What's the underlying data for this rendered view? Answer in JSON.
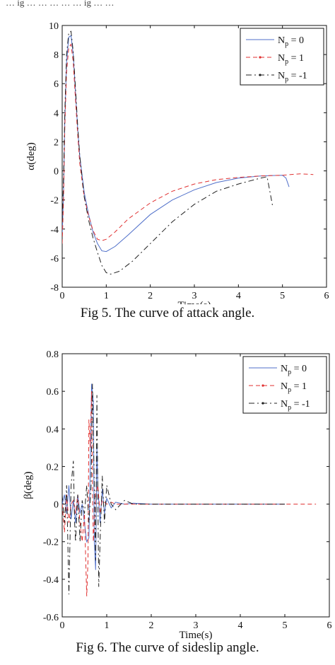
{
  "top_text": "… ig … … … … … ig … …",
  "captions": [
    "Fig 5. The curve of attack angle.",
    "Fig 6. The curve of sideslip angle."
  ],
  "colors": {
    "np0": "#4f6fc9",
    "np1": "#e03030",
    "npm1": "#222222"
  },
  "chart_data": [
    {
      "type": "line",
      "xlabel": "Time(s)",
      "ylabel": "α(deg)",
      "xlim": [
        0,
        6
      ],
      "ylim": [
        -8,
        10
      ],
      "xticks": [
        0,
        1,
        2,
        3,
        4,
        5,
        6
      ],
      "yticks": [
        -8,
        -6,
        -4,
        -2,
        0,
        2,
        4,
        6,
        8,
        10
      ],
      "legend_position": "top-right",
      "legend": [
        {
          "label": "N",
          "sub": "p",
          "eq": " = 0"
        },
        {
          "label": "N",
          "sub": "p",
          "eq": " = 1"
        },
        {
          "label": "N",
          "sub": "p",
          "eq": " = -1"
        }
      ],
      "series": [
        {
          "key": "np0",
          "style": "solid",
          "x": [
            0,
            0.03,
            0.06,
            0.1,
            0.15,
            0.2,
            0.25,
            0.3,
            0.35,
            0.4,
            0.5,
            0.6,
            0.7,
            0.8,
            0.9,
            1.0,
            1.2,
            1.5,
            2.0,
            2.5,
            3.0,
            3.5,
            4.0,
            4.5,
            5.0,
            5.08,
            5.15
          ],
          "y": [
            -4.5,
            -1.5,
            3.5,
            7.5,
            9.2,
            9.3,
            8.0,
            5.5,
            3.0,
            1.0,
            -1.5,
            -3.0,
            -4.2,
            -5.0,
            -5.5,
            -5.55,
            -5.2,
            -4.4,
            -3.0,
            -2.0,
            -1.3,
            -0.8,
            -0.5,
            -0.35,
            -0.3,
            -0.5,
            -1.1
          ]
        },
        {
          "key": "np1",
          "style": "dashed",
          "x": [
            0,
            0.03,
            0.06,
            0.1,
            0.15,
            0.2,
            0.25,
            0.3,
            0.35,
            0.4,
            0.5,
            0.6,
            0.7,
            0.8,
            0.9,
            1.0,
            1.2,
            1.5,
            2.0,
            2.5,
            3.0,
            3.5,
            4.0,
            4.5,
            5.0,
            5.4,
            5.7
          ],
          "y": [
            -5.0,
            -2.0,
            3.0,
            6.8,
            8.5,
            8.7,
            7.5,
            5.0,
            2.6,
            0.5,
            -1.8,
            -3.1,
            -4.1,
            -4.7,
            -4.8,
            -4.7,
            -4.2,
            -3.3,
            -2.2,
            -1.4,
            -0.9,
            -0.6,
            -0.45,
            -0.35,
            -0.3,
            -0.2,
            -0.25
          ]
        },
        {
          "key": "npm1",
          "style": "dashdot",
          "x": [
            0,
            0.03,
            0.06,
            0.1,
            0.15,
            0.2,
            0.25,
            0.3,
            0.35,
            0.4,
            0.5,
            0.6,
            0.7,
            0.8,
            0.9,
            1.0,
            1.1,
            1.3,
            1.6,
            2.0,
            2.5,
            3.0,
            3.5,
            4.0,
            4.5,
            4.65,
            4.72,
            4.78
          ],
          "y": [
            -3.5,
            -0.5,
            4.0,
            8.0,
            9.5,
            9.6,
            8.2,
            5.8,
            3.2,
            1.0,
            -1.8,
            -3.4,
            -4.6,
            -5.6,
            -6.5,
            -7.0,
            -7.1,
            -6.9,
            -6.2,
            -5.0,
            -3.5,
            -2.3,
            -1.4,
            -0.9,
            -0.5,
            -0.4,
            -1.5,
            -2.5
          ]
        }
      ]
    },
    {
      "type": "line",
      "xlabel": "Time(s)",
      "ylabel": "β(deg)",
      "xlim": [
        0,
        6
      ],
      "ylim": [
        -0.6,
        0.8
      ],
      "xticks": [
        0,
        1,
        2,
        3,
        4,
        5,
        6
      ],
      "yticks": [
        -0.6,
        -0.4,
        -0.2,
        0,
        0.2,
        0.4,
        0.6,
        0.8
      ],
      "legend_position": "top-right",
      "legend": [
        {
          "label": "N",
          "sub": "p",
          "eq": " = 0"
        },
        {
          "label": "N",
          "sub": "p",
          "eq": " = 1"
        },
        {
          "label": "N",
          "sub": "p",
          "eq": " = -1"
        }
      ],
      "series": [
        {
          "key": "np0",
          "style": "solid",
          "x": [
            0,
            0.05,
            0.1,
            0.15,
            0.2,
            0.25,
            0.3,
            0.35,
            0.4,
            0.45,
            0.5,
            0.55,
            0.6,
            0.63,
            0.66,
            0.7,
            0.72,
            0.75,
            0.78,
            0.8,
            0.85,
            0.9,
            0.95,
            1.0,
            1.1,
            1.2,
            1.4,
            1.6,
            2.0,
            3.0,
            4.0,
            5.0
          ],
          "y": [
            0.0,
            0.05,
            -0.05,
            0.1,
            -0.08,
            0.02,
            -0.1,
            0.05,
            -0.05,
            0.0,
            -0.1,
            -0.2,
            -0.18,
            0.2,
            0.64,
            0.55,
            -0.2,
            -0.35,
            0.3,
            0.1,
            -0.1,
            0.08,
            -0.05,
            0.03,
            -0.02,
            0.01,
            0.0,
            0.005,
            0.0,
            0.0,
            0.0,
            0.0
          ]
        },
        {
          "key": "np1",
          "style": "dashed",
          "x": [
            0,
            0.05,
            0.1,
            0.15,
            0.2,
            0.25,
            0.3,
            0.35,
            0.4,
            0.45,
            0.5,
            0.55,
            0.58,
            0.6,
            0.63,
            0.66,
            0.68,
            0.7,
            0.75,
            0.8,
            0.85,
            0.9,
            1.0,
            1.1,
            1.2,
            1.4,
            1.6,
            2.0,
            3.0,
            4.0,
            5.0,
            5.7
          ],
          "y": [
            0.0,
            -0.15,
            0.05,
            -0.1,
            0.0,
            0.02,
            -0.05,
            0.05,
            -0.1,
            -0.2,
            -0.05,
            -0.49,
            -0.3,
            0.45,
            0.3,
            0.6,
            0.1,
            -0.2,
            0.05,
            0.1,
            -0.05,
            0.02,
            0.0,
            0.01,
            0.0,
            0.0,
            0.0,
            0.0,
            0.0,
            0.0,
            0.0,
            0.0
          ]
        },
        {
          "key": "npm1",
          "style": "dashdot",
          "x": [
            0,
            0.05,
            0.1,
            0.15,
            0.2,
            0.25,
            0.28,
            0.3,
            0.35,
            0.4,
            0.45,
            0.5,
            0.55,
            0.6,
            0.65,
            0.68,
            0.72,
            0.75,
            0.78,
            0.82,
            0.85,
            0.9,
            0.95,
            1.0,
            1.1,
            1.2,
            1.4,
            1.6,
            2.0,
            3.0,
            4.0,
            5.0
          ],
          "y": [
            0.05,
            -0.1,
            0.1,
            -0.48,
            0.1,
            0.23,
            -0.1,
            -0.2,
            0.05,
            -0.2,
            0.02,
            -0.05,
            0.1,
            -0.1,
            0.1,
            0.64,
            0.1,
            -0.3,
            0.58,
            -0.44,
            -0.2,
            0.15,
            -0.1,
            0.1,
            0.0,
            -0.03,
            0.02,
            0.0,
            0.0,
            0.0,
            0.0,
            0.0
          ]
        }
      ]
    }
  ]
}
